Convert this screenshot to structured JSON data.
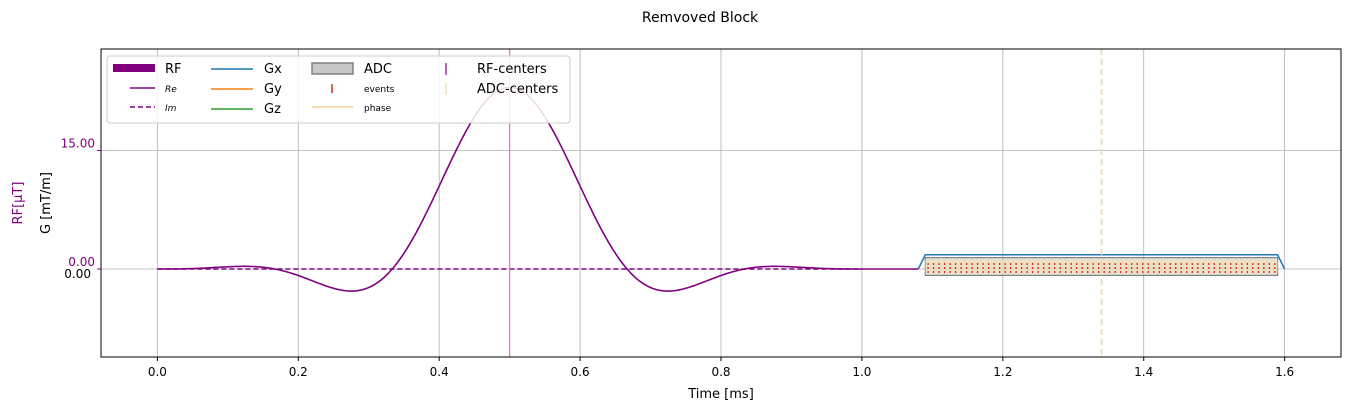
{
  "chart_data": {
    "type": "line",
    "title": "Remvoved Block",
    "xlabel": "Time [ms]",
    "ylabel_rf": "RF[μT]",
    "ylabel_g": "G [mT/m]",
    "xlim": [
      -0.08,
      1.68
    ],
    "ylim_g": [
      -0.62,
      1.55
    ],
    "x_ticks": [
      0.0,
      0.2,
      0.4,
      0.6,
      0.8,
      1.0,
      1.2,
      1.4,
      1.6
    ],
    "x_tick_labels": [
      "0.0",
      "0.2",
      "0.4",
      "0.6",
      "0.8",
      "1.0",
      "1.2",
      "1.4",
      "1.6"
    ],
    "y_ticks_g": [
      0.0
    ],
    "y_tick_labels_g": [
      "0.00"
    ],
    "y_ticks_rf": [
      0.0,
      15.0
    ],
    "y_tick_labels_rf": [
      "0.00",
      "15.00"
    ],
    "grid": true,
    "legend_position": "top-left",
    "colors": {
      "rf": "#800080",
      "gx": "#1f77b4",
      "gy": "#ff7f0e",
      "gz": "#2ca02c",
      "adc_fill": "#c8c8c8",
      "adc_edge": "#808080",
      "events": "#d62728",
      "phase": "#f5deb3",
      "rf_centers": "#da70d6",
      "adc_centers": "#f0d8a8"
    },
    "legend": {
      "rf": "RF",
      "re": "Re",
      "im": "Im",
      "gx": "Gx",
      "gy": "Gy",
      "gz": "Gz",
      "adc": "ADC",
      "events": "events",
      "phase": "phase",
      "rf_centers": "RF-centers",
      "adc_centers": "ADC-centers"
    },
    "rf_pulse": {
      "start_ms": 0.0,
      "end_ms": 1.0,
      "center_ms": 0.5,
      "peak_uT": 23.0,
      "shape": "sinc"
    },
    "gx_trapezoid": {
      "start_ms": 1.08,
      "flat_start_ms": 1.09,
      "flat_end_ms": 1.59,
      "end_ms": 1.6,
      "amplitude_mT_per_m": 0.1
    },
    "adc": {
      "start_ms": 1.09,
      "end_ms": 1.59,
      "center_ms": 1.34,
      "samples": 64
    },
    "rf_center_ms": 0.5,
    "adc_center_ms": 1.34
  }
}
